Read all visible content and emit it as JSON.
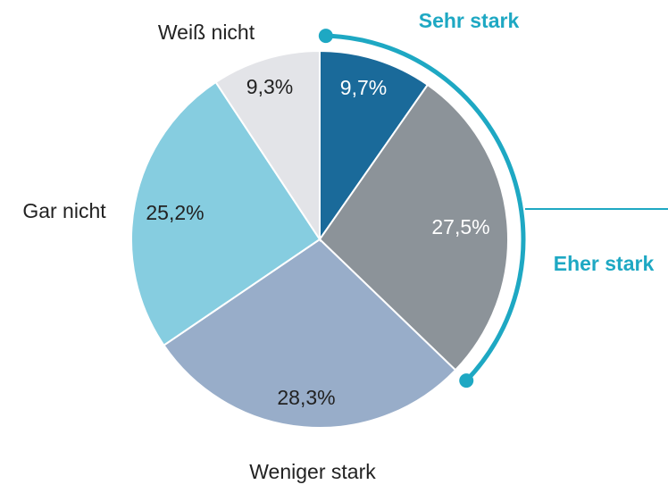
{
  "chart_data": {
    "type": "pie",
    "categories": [
      "Sehr stark",
      "Eher stark",
      "Weniger stark",
      "Gar nicht",
      "Weiß nicht"
    ],
    "values": [
      9.7,
      27.5,
      28.3,
      25.2,
      9.3
    ],
    "value_labels": [
      "9,7%",
      "27,5%",
      "28,3%",
      "25,2%",
      "9,3%"
    ],
    "colors": [
      "#1a6a9a",
      "#8c9399",
      "#98adc9",
      "#86cde0",
      "#e3e4e8"
    ]
  }
}
